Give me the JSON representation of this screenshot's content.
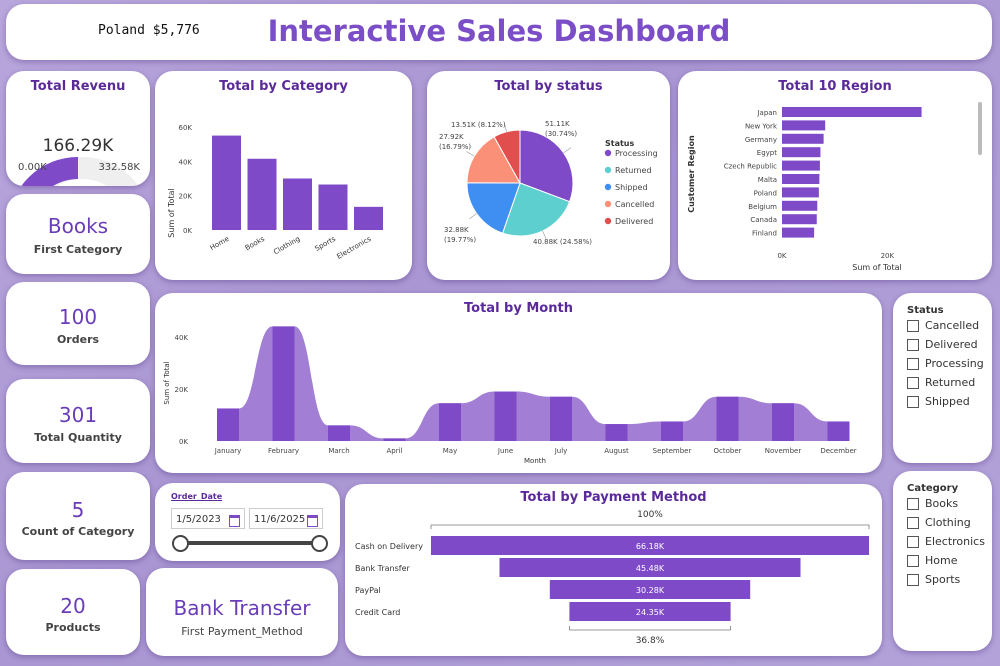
{
  "header": {
    "title": "Interactive Sales Dashboard",
    "ticker": "Poland $5,776"
  },
  "revenue": {
    "title": "Total Revenu",
    "value": "166.29K",
    "min": "0.00K",
    "max": "332.58K",
    "fraction": 0.5
  },
  "kpis": {
    "first_category": {
      "value": "Books",
      "label": "First Category"
    },
    "orders": {
      "value": "100",
      "label": "Orders"
    },
    "quantity": {
      "value": "301",
      "label": "Total Quantity"
    },
    "count_category": {
      "value": "5",
      "label": "Count of Category"
    },
    "products": {
      "value": "20",
      "label": "Products"
    },
    "first_payment": {
      "value": "Bank Transfer",
      "label": "First Payment_Method"
    }
  },
  "date_slicer": {
    "label": "Order_Date",
    "start": "1/5/2023",
    "end": "11/6/2025",
    "start_icon": "calendar-icon",
    "end_icon": "calendar-icon"
  },
  "status_slicer": {
    "title": "Status",
    "options": [
      "Cancelled",
      "Delivered",
      "Processing",
      "Returned",
      "Shipped"
    ]
  },
  "category_slicer": {
    "title": "Category",
    "options": [
      "Books",
      "Clothing",
      "Electronics",
      "Home",
      "Sports"
    ]
  },
  "colors": {
    "accent": "#7e4ac8",
    "title": "#5b2a9a",
    "light": "#a27fd4"
  },
  "chart_data": [
    {
      "id": "category",
      "type": "bar",
      "title": "Total by Category",
      "ylabel": "Sum of Total",
      "xlabel": "",
      "categories": [
        "Home",
        "Books",
        "Clothing",
        "Sports",
        "Electronics"
      ],
      "values": [
        55000,
        41500,
        30000,
        26500,
        13500
      ],
      "ylim": [
        0,
        60000
      ],
      "yticks": [
        "0K",
        "20K",
        "40K",
        "60K"
      ],
      "ytick_values": [
        0,
        20000,
        40000,
        60000
      ]
    },
    {
      "id": "status",
      "type": "pie",
      "title": "Total by status",
      "legend_title": "Status",
      "labels": [
        "Processing",
        "Returned",
        "Shipped",
        "Cancelled",
        "Delivered"
      ],
      "values": [
        51110,
        40880,
        32880,
        27920,
        13510
      ],
      "value_labels": [
        "51.11K",
        "40.88K (24.58%)",
        "32.88K",
        "27.92K",
        "13.51K (8.12%)"
      ],
      "pct_labels": [
        "(30.74%)",
        "",
        "(19.77%)",
        "(16.79%)",
        ""
      ],
      "colors": [
        "#7e4ac8",
        "#5dcfcf",
        "#3f8ef2",
        "#fa9078",
        "#e04e4e"
      ]
    },
    {
      "id": "region",
      "type": "bar",
      "orientation": "horizontal",
      "title": "Total 10 Region",
      "ylabel": "Customer Region",
      "xlabel": "Sum of Total",
      "categories": [
        "Japan",
        "New York",
        "Germany",
        "Egypt",
        "Czech Republic",
        "Malta",
        "Poland",
        "Belgium",
        "Canada",
        "Finland"
      ],
      "values": [
        26500,
        8200,
        7900,
        7300,
        7200,
        7100,
        7000,
        6700,
        6600,
        6100
      ],
      "xlim": [
        0,
        30000
      ],
      "xticks": [
        "0K",
        "20K"
      ],
      "xtick_values": [
        0,
        20000
      ]
    },
    {
      "id": "month",
      "type": "area",
      "title": "Total by Month",
      "ylabel": "Sum of Total",
      "xlabel": "Month",
      "categories": [
        "January",
        "February",
        "March",
        "April",
        "May",
        "June",
        "July",
        "August",
        "September",
        "October",
        "November",
        "December"
      ],
      "values": [
        12500,
        44000,
        6000,
        1000,
        14500,
        19000,
        17000,
        6500,
        7500,
        17000,
        14500,
        7500
      ],
      "ylim": [
        0,
        48000
      ],
      "yticks": [
        "0K",
        "20K",
        "40K"
      ],
      "ytick_values": [
        0,
        20000,
        40000
      ]
    },
    {
      "id": "payment",
      "type": "bar",
      "subtype": "funnel",
      "title": "Total by Payment Method",
      "categories": [
        "Cash on Delivery",
        "Bank Transfer",
        "PayPal",
        "Credit Card"
      ],
      "values": [
        66180,
        45480,
        30280,
        24350
      ],
      "value_labels": [
        "66.18K",
        "45.48K",
        "30.28K",
        "24.35K"
      ],
      "top_pct": "100%",
      "bottom_pct": "36.8%"
    }
  ]
}
